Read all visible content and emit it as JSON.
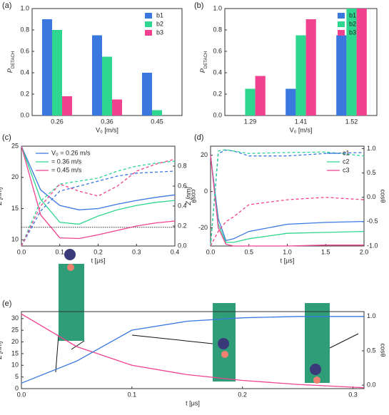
{
  "chart_data": [
    {
      "type": "bar",
      "label": "(a)",
      "xlabel": "V₀ [m/s]",
      "ylabel": "P",
      "ylabel_sub": "DETACH",
      "categories": [
        "0.26",
        "0.36",
        "0.45"
      ],
      "series": [
        {
          "name": "b1",
          "color": "#3a78e0",
          "values": [
            0.9,
            0.75,
            0.4
          ]
        },
        {
          "name": "b2",
          "color": "#2fd68f",
          "values": [
            0.8,
            0.55,
            0.05
          ]
        },
        {
          "name": "b3",
          "color": "#f0428f",
          "values": [
            0.18,
            0.15,
            0.0
          ]
        }
      ],
      "ylim": [
        0,
        1
      ],
      "yticks": [
        {
          "value": 0,
          "label": "0.0"
        },
        0.2,
        0.4,
        0.6,
        0.8,
        {
          "value": 1,
          "label": "1.0"
        }
      ],
      "legend": "upper right"
    },
    {
      "type": "bar",
      "label": "(b)",
      "xlabel": "V₀ [m/s]",
      "ylabel": "P",
      "ylabel_sub": "DETACH",
      "categories": [
        "1.29",
        "1.41",
        "1.52"
      ],
      "series": [
        {
          "name": "b1",
          "color": "#3a78e0",
          "values": [
            0.0,
            0.25,
            0.75
          ]
        },
        {
          "name": "b2",
          "color": "#2fd68f",
          "values": [
            0.25,
            0.75,
            1.0
          ]
        },
        {
          "name": "b3",
          "color": "#f0428f",
          "values": [
            0.37,
            0.9,
            1.0
          ]
        }
      ],
      "ylim": [
        0,
        1
      ],
      "yticks": [
        {
          "value": 0,
          "label": "0.0"
        },
        0.2,
        0.4,
        0.6,
        0.8,
        {
          "value": 1,
          "label": "1.0"
        }
      ],
      "legend": "upper left"
    },
    {
      "type": "line",
      "label": "(c)",
      "xlabel": "t [μs]",
      "ylabel": "Z [nm]",
      "y2label": "cosθ",
      "x": [
        0,
        0.05,
        0.1,
        0.15,
        0.2,
        0.25,
        0.3,
        0.35,
        0.4
      ],
      "series": [
        {
          "name": "V₀ = 0.26 m/s",
          "color": "#3a78e0",
          "values": [
            25,
            18,
            15.5,
            14.8,
            15,
            15.7,
            16.3,
            16.8,
            17.2
          ]
        },
        {
          "name": "= 0.36 m/s",
          "color": "#2fd68f",
          "values": [
            25,
            16.5,
            12.8,
            12.5,
            13.8,
            14.8,
            15.5,
            16,
            16.3
          ]
        },
        {
          "name": "= 0.45 m/s",
          "color": "#f0428f",
          "values": [
            25,
            14,
            10.3,
            10.2,
            10.8,
            11.5,
            12.2,
            12.7,
            13
          ]
        },
        {
          "color": "#3a78e0",
          "dash": true,
          "axis": "y2",
          "values": [
            0,
            0.35,
            0.55,
            0.6,
            0.65,
            0.7,
            0.73,
            0.74,
            0.75
          ]
        },
        {
          "color": "#2fd68f",
          "dash": true,
          "axis": "y2",
          "values": [
            0,
            0.45,
            0.62,
            0.65,
            0.68,
            0.75,
            0.8,
            0.83,
            0.85
          ]
        },
        {
          "color": "#f0428f",
          "dash": true,
          "axis": "y2",
          "values": [
            0,
            0.4,
            0.62,
            0.55,
            0.5,
            0.6,
            0.75,
            0.82,
            0.87
          ]
        }
      ],
      "xlim": [
        0,
        0.4
      ],
      "xticks": [
        {
          "value": 0,
          "label": "0.0"
        },
        0.1,
        0.2,
        0.3,
        0.4
      ],
      "ylim": [
        9,
        25
      ],
      "yticks": [
        10,
        15,
        20,
        25
      ],
      "y2lim": [
        0,
        1
      ],
      "y2ticks": [
        {
          "value": 0,
          "label": "0.0"
        },
        0.2,
        0.4,
        0.6,
        0.8
      ],
      "hline": 12,
      "legend": "upper center"
    },
    {
      "type": "line",
      "label": "(d)",
      "xlabel": "t [μs]",
      "ylabel": "Z [nm]",
      "y2label": "cosθ",
      "x": [
        0,
        0.1,
        0.2,
        0.3,
        0.5,
        1,
        1.5,
        2
      ],
      "series": [
        {
          "name": "c1",
          "color": "#3a78e0",
          "values": [
            20,
            -15,
            -27,
            -26,
            -22,
            -18,
            -17,
            -16.5
          ]
        },
        {
          "name": "c2",
          "color": "#2fd68f",
          "values": [
            20,
            -18,
            -28,
            -28,
            -26,
            -23,
            -22.5,
            -22
          ]
        },
        {
          "name": "c3",
          "color": "#f0428f",
          "values": [
            20,
            -20,
            -29,
            -30,
            -30,
            -30,
            -29.5,
            -29.5
          ]
        },
        {
          "color": "#3a78e0",
          "dash": true,
          "axis": "y2",
          "values": [
            -1,
            0.9,
            0.97,
            0.95,
            0.85,
            0.85,
            0.9,
            0.92
          ]
        },
        {
          "color": "#2fd68f",
          "dash": true,
          "axis": "y2",
          "values": [
            -1,
            0.95,
            0.98,
            0.95,
            0.9,
            0.92,
            0.93,
            0.85
          ]
        },
        {
          "color": "#f0428f",
          "dash": true,
          "axis": "y2",
          "values": [
            -1,
            -0.7,
            -0.5,
            -0.4,
            -0.15,
            -0.05,
            0.0,
            -0.05
          ]
        }
      ],
      "xlim": [
        0,
        2
      ],
      "xticks": [
        {
          "value": 0,
          "label": "0.0"
        },
        0.5,
        {
          "value": 1,
          "label": "1.0"
        },
        1.5,
        {
          "value": 2,
          "label": "2.0"
        }
      ],
      "ylim": [
        -30,
        25
      ],
      "yticks": [
        -20,
        0,
        20
      ],
      "y2lim": [
        -1,
        1.05
      ],
      "y2ticks": [
        {
          "value": -1,
          "label": "-1.0"
        },
        -0.5,
        {
          "value": 0,
          "label": "0.0"
        },
        0.5,
        {
          "value": 1,
          "label": "1.0"
        }
      ],
      "legend": "upper right"
    },
    {
      "type": "line",
      "label": "(e)",
      "xlabel": "t [μs]",
      "ylabel": "Z [nm]",
      "y2label": "cosθ",
      "x": [
        0,
        0.05,
        0.1,
        0.15,
        0.2,
        0.25,
        0.3,
        0.31
      ],
      "series": [
        {
          "color": "#f0428f",
          "values": [
            32,
            18,
            10,
            6,
            3.5,
            1.8,
            0.6,
            0.4
          ]
        },
        {
          "color": "#3a78e0",
          "axis": "y2",
          "values": [
            0.03,
            0.35,
            0.8,
            0.93,
            0.98,
            1.0,
            1.0,
            1.0
          ]
        }
      ],
      "xlim": [
        0,
        0.31
      ],
      "xticks": [
        {
          "value": 0,
          "label": "0.0"
        },
        0.1,
        0.2,
        0.3
      ],
      "ylim": [
        0,
        33
      ],
      "yticks": [
        0,
        5,
        10,
        15,
        20,
        25,
        30
      ],
      "y2lim": [
        -0.05,
        1.07
      ],
      "y2ticks": [
        {
          "value": 0,
          "label": "0.0"
        },
        0.5,
        {
          "value": 1,
          "label": "1.0"
        }
      ]
    }
  ]
}
